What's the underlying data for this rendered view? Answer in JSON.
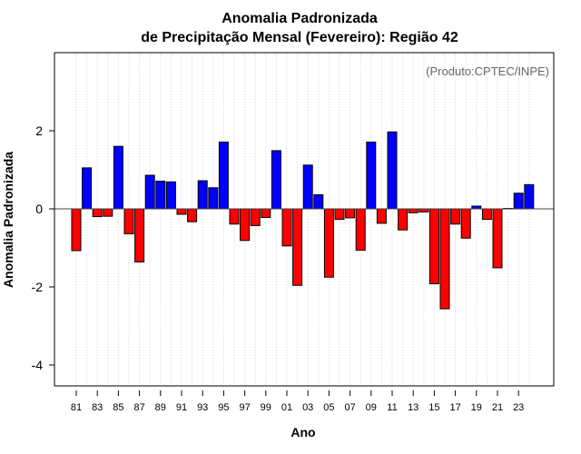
{
  "chart_data": {
    "type": "bar",
    "title": "Anomalia Padronizada",
    "subtitle": "de Precipitação Mensal (Fevereiro): Região 42",
    "xlabel": "Ano",
    "ylabel": "Anomalia Padronizada",
    "annotation": "(Produto:CPTEC/INPE)",
    "years": [
      1981,
      1982,
      1983,
      1984,
      1985,
      1986,
      1987,
      1988,
      1989,
      1990,
      1991,
      1992,
      1993,
      1994,
      1995,
      1996,
      1997,
      1998,
      1999,
      2000,
      2001,
      2002,
      2003,
      2004,
      2005,
      2006,
      2007,
      2008,
      2009,
      2010,
      2011,
      2012,
      2013,
      2014,
      2015,
      2016,
      2017,
      2018,
      2019,
      2020,
      2021,
      2022,
      2023,
      2024
    ],
    "values": [
      -1.07,
      1.05,
      -0.2,
      -0.19,
      1.6,
      -0.64,
      -1.36,
      0.86,
      0.71,
      0.69,
      -0.14,
      -0.33,
      0.72,
      0.54,
      1.71,
      -0.39,
      -0.81,
      -0.43,
      -0.22,
      1.49,
      -0.95,
      -1.96,
      1.12,
      0.36,
      -1.75,
      -0.27,
      -0.23,
      -1.06,
      1.71,
      -0.37,
      1.97,
      -0.54,
      -0.1,
      -0.08,
      -1.92,
      -2.56,
      -0.39,
      -0.75,
      0.07,
      -0.27,
      -1.51,
      0.01,
      0.4,
      0.62
    ],
    "x_tick_labels": [
      "81",
      "83",
      "85",
      "87",
      "89",
      "91",
      "93",
      "95",
      "97",
      "99",
      "01",
      "03",
      "05",
      "07",
      "09",
      "11",
      "13",
      "15",
      "17",
      "19",
      "21",
      "23"
    ],
    "y_ticks": [
      -4,
      -2,
      0,
      2
    ],
    "y_tick_labels": [
      "-4",
      "-2",
      "0",
      "2"
    ],
    "ylim": [
      -4.53,
      4
    ],
    "grid": "vertical dotted per year",
    "colors": {
      "positive": "#0000FF",
      "negative": "#FF0000",
      "grid": "#D3D3D3"
    }
  }
}
